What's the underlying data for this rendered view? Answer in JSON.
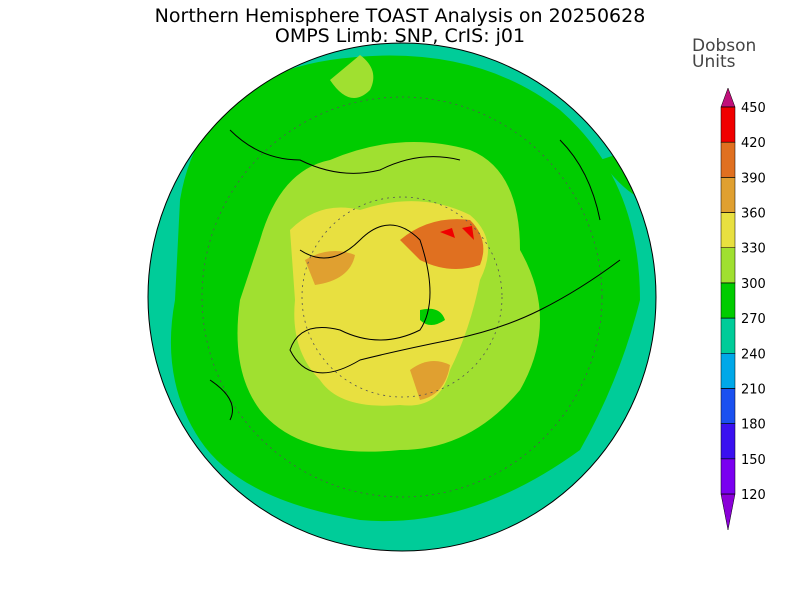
{
  "header": {
    "title": "Northern Hemisphere TOAST Analysis on 20250628",
    "subtitle": "OMPS Limb: SNP, CrIS: j01"
  },
  "colorbar": {
    "label_lines": [
      "Dobson",
      "Units"
    ],
    "ticks": [
      120,
      150,
      180,
      210,
      240,
      270,
      300,
      330,
      360,
      390,
      420,
      450
    ],
    "colors": [
      "#8a00d8",
      "#7a00f0",
      "#3a10f0",
      "#1a50f0",
      "#00a8e8",
      "#00cc99",
      "#00cc00",
      "#a0e030",
      "#e8e040",
      "#e0a030",
      "#e07020",
      "#f00000",
      "#c0107a"
    ]
  }
}
